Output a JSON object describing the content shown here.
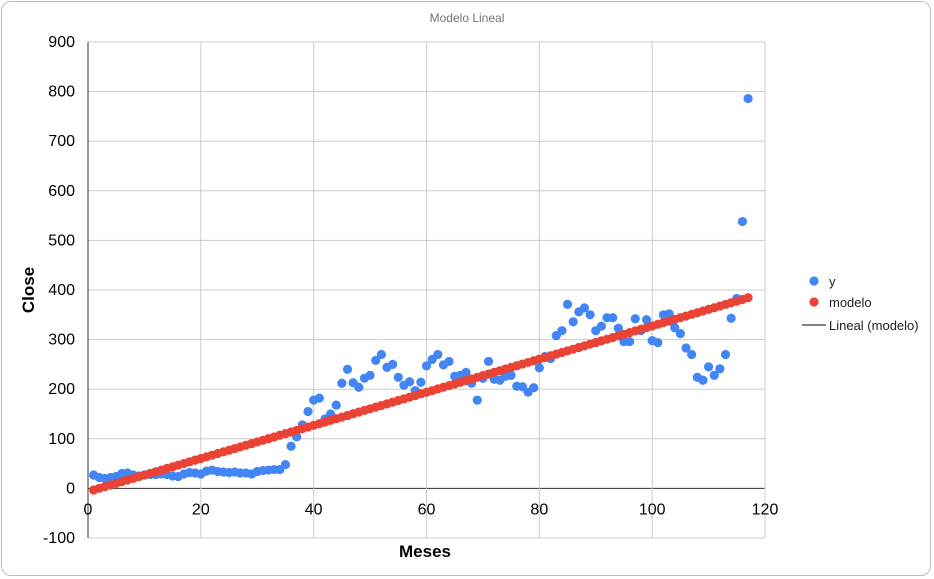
{
  "chart_data": {
    "type": "scatter",
    "title": "Modelo Lineal",
    "xlabel": "Meses",
    "ylabel": "Close",
    "xlim": [
      0,
      120
    ],
    "ylim": [
      -100,
      900
    ],
    "xticks": [
      0,
      20,
      40,
      60,
      80,
      100,
      120
    ],
    "yticks": [
      -100,
      0,
      100,
      200,
      300,
      400,
      500,
      600,
      700,
      800,
      900
    ],
    "grid": true,
    "legend_position": "right",
    "colors": {
      "y": "#4285f4",
      "modelo": "#ea4335",
      "lineal": "#595959"
    },
    "trendline": {
      "name": "Lineal (modelo)",
      "slope": 3.34,
      "intercept": -6.5
    },
    "series": [
      {
        "name": "y",
        "x": [
          1,
          2,
          3,
          4,
          5,
          6,
          7,
          8,
          9,
          10,
          11,
          12,
          13,
          14,
          15,
          16,
          17,
          18,
          19,
          20,
          21,
          22,
          23,
          24,
          25,
          26,
          27,
          28,
          29,
          30,
          31,
          32,
          33,
          34,
          35,
          36,
          37,
          38,
          39,
          40,
          41,
          42,
          43,
          44,
          45,
          46,
          47,
          48,
          49,
          50,
          51,
          52,
          53,
          54,
          55,
          56,
          57,
          58,
          59,
          60,
          61,
          62,
          63,
          64,
          65,
          66,
          67,
          68,
          69,
          70,
          71,
          72,
          73,
          74,
          75,
          76,
          77,
          78,
          79,
          80,
          81,
          82,
          83,
          84,
          85,
          86,
          87,
          88,
          89,
          90,
          91,
          92,
          93,
          94,
          95,
          96,
          97,
          98,
          99,
          100,
          101,
          102,
          103,
          104,
          105,
          106,
          107,
          108,
          109,
          110,
          111,
          112,
          113,
          114,
          115,
          116,
          117
        ],
        "y": [
          27,
          22,
          20,
          22,
          24,
          30,
          31,
          27,
          25,
          27,
          28,
          28,
          29,
          28,
          25,
          24,
          29,
          32,
          31,
          29,
          35,
          37,
          34,
          33,
          32,
          33,
          31,
          31,
          29,
          34,
          36,
          37,
          38,
          38,
          48,
          85,
          104,
          128,
          155,
          178,
          182,
          140,
          150,
          168,
          212,
          240,
          213,
          204,
          222,
          228,
          258,
          270,
          244,
          250,
          224,
          208,
          215,
          197,
          214,
          247,
          260,
          270,
          249,
          256,
          226,
          228,
          234,
          212,
          178,
          222,
          256,
          220,
          218,
          226,
          228,
          206,
          205,
          194,
          203,
          243,
          266,
          262,
          308,
          318,
          371,
          336,
          356,
          364,
          350,
          318,
          327,
          344,
          344,
          323,
          296,
          296,
          342,
          318,
          340,
          298,
          294,
          350,
          352,
          324,
          312,
          283,
          270,
          224,
          218,
          245,
          228,
          241,
          270,
          343,
          383,
          538,
          786
        ]
      },
      {
        "name": "modelo",
        "x": [
          1,
          2,
          3,
          4,
          5,
          6,
          7,
          8,
          9,
          10,
          11,
          12,
          13,
          14,
          15,
          16,
          17,
          18,
          19,
          20,
          21,
          22,
          23,
          24,
          25,
          26,
          27,
          28,
          29,
          30,
          31,
          32,
          33,
          34,
          35,
          36,
          37,
          38,
          39,
          40,
          41,
          42,
          43,
          44,
          45,
          46,
          47,
          48,
          49,
          50,
          51,
          52,
          53,
          54,
          55,
          56,
          57,
          58,
          59,
          60,
          61,
          62,
          63,
          64,
          65,
          66,
          67,
          68,
          69,
          70,
          71,
          72,
          73,
          74,
          75,
          76,
          77,
          78,
          79,
          80,
          81,
          82,
          83,
          84,
          85,
          86,
          87,
          88,
          89,
          90,
          91,
          92,
          93,
          94,
          95,
          96,
          97,
          98,
          99,
          100,
          101,
          102,
          103,
          104,
          105,
          106,
          107,
          108,
          109,
          110,
          111,
          112,
          113,
          114,
          115,
          116,
          117
        ],
        "y": [
          -3.2,
          0.2,
          3.5,
          6.9,
          10.2,
          13.5,
          16.9,
          20.2,
          23.6,
          26.9,
          30.2,
          33.6,
          36.9,
          40.3,
          43.6,
          46.9,
          50.3,
          53.6,
          57.0,
          60.3,
          63.6,
          67.0,
          70.3,
          73.7,
          77.0,
          80.3,
          83.7,
          87.0,
          90.4,
          93.7,
          97.0,
          100.4,
          103.7,
          107.1,
          110.4,
          113.7,
          117.1,
          120.4,
          123.8,
          127.1,
          130.4,
          133.8,
          137.1,
          140.5,
          143.8,
          147.1,
          150.5,
          153.8,
          157.2,
          160.5,
          163.8,
          167.2,
          170.5,
          173.9,
          177.2,
          180.5,
          183.9,
          187.2,
          190.6,
          193.9,
          197.2,
          200.6,
          203.9,
          207.3,
          210.6,
          213.9,
          217.3,
          220.6,
          224.0,
          227.3,
          230.6,
          234.0,
          237.3,
          240.7,
          244.0,
          247.3,
          250.7,
          254.0,
          257.4,
          260.7,
          264.0,
          267.4,
          270.7,
          274.1,
          277.4,
          280.7,
          284.1,
          287.4,
          290.8,
          294.1,
          297.4,
          300.8,
          304.1,
          307.5,
          310.8,
          314.1,
          317.5,
          320.8,
          324.2,
          327.5,
          330.8,
          334.2,
          337.5,
          340.9,
          344.2,
          347.5,
          350.9,
          354.2,
          357.6,
          360.9,
          364.2,
          367.6,
          370.9,
          374.3,
          377.6,
          380.9,
          384.3
        ]
      }
    ],
    "legend": [
      "y",
      "modelo",
      "Lineal (modelo)"
    ]
  }
}
